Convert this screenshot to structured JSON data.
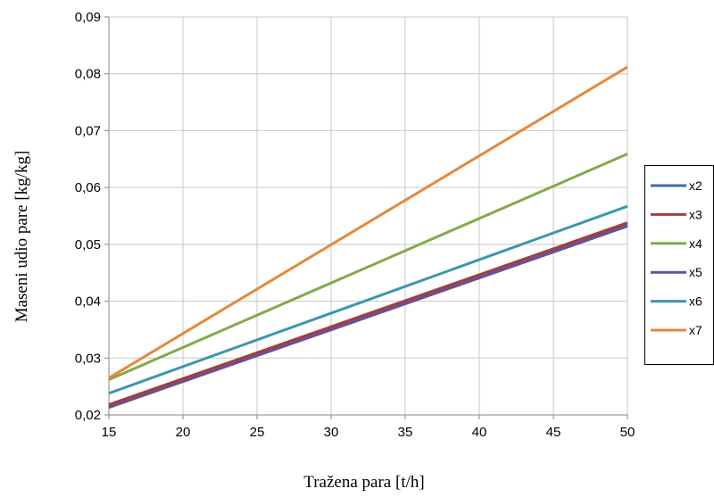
{
  "chart_data": {
    "type": "line",
    "title": "",
    "xlabel": "Tražena para  [t/h]",
    "ylabel": "Maseni udio pare [kg/kg]",
    "xlim": [
      15,
      50
    ],
    "ylim": [
      0.02,
      0.09
    ],
    "x_ticks": [
      15,
      20,
      25,
      30,
      35,
      40,
      45,
      50
    ],
    "y_ticks": [
      0.02,
      0.03,
      0.04,
      0.05,
      0.06,
      0.07,
      0.08,
      0.09
    ],
    "x_tick_labels": [
      "15",
      "20",
      "25",
      "30",
      "35",
      "40",
      "45",
      "50"
    ],
    "y_tick_labels": [
      "0,02",
      "0,03",
      "0,04",
      "0,05",
      "0,06",
      "0,07",
      "0,08",
      "0,09"
    ],
    "grid": true,
    "legend_position": "right",
    "x": [
      15,
      50
    ],
    "series": [
      {
        "name": "x2",
        "color": "#3F6AA8",
        "values": [
          0.0215,
          0.0535
        ]
      },
      {
        "name": "x3",
        "color": "#A63D3A",
        "values": [
          0.0218,
          0.0538
        ]
      },
      {
        "name": "x4",
        "color": "#86A84A",
        "values": [
          0.0262,
          0.0659
        ]
      },
      {
        "name": "x5",
        "color": "#6B4F94",
        "values": [
          0.0213,
          0.0532
        ]
      },
      {
        "name": "x6",
        "color": "#3A97AE",
        "values": [
          0.0238,
          0.0567
        ]
      },
      {
        "name": "x7",
        "color": "#E4883A",
        "values": [
          0.0265,
          0.0812
        ]
      }
    ]
  }
}
